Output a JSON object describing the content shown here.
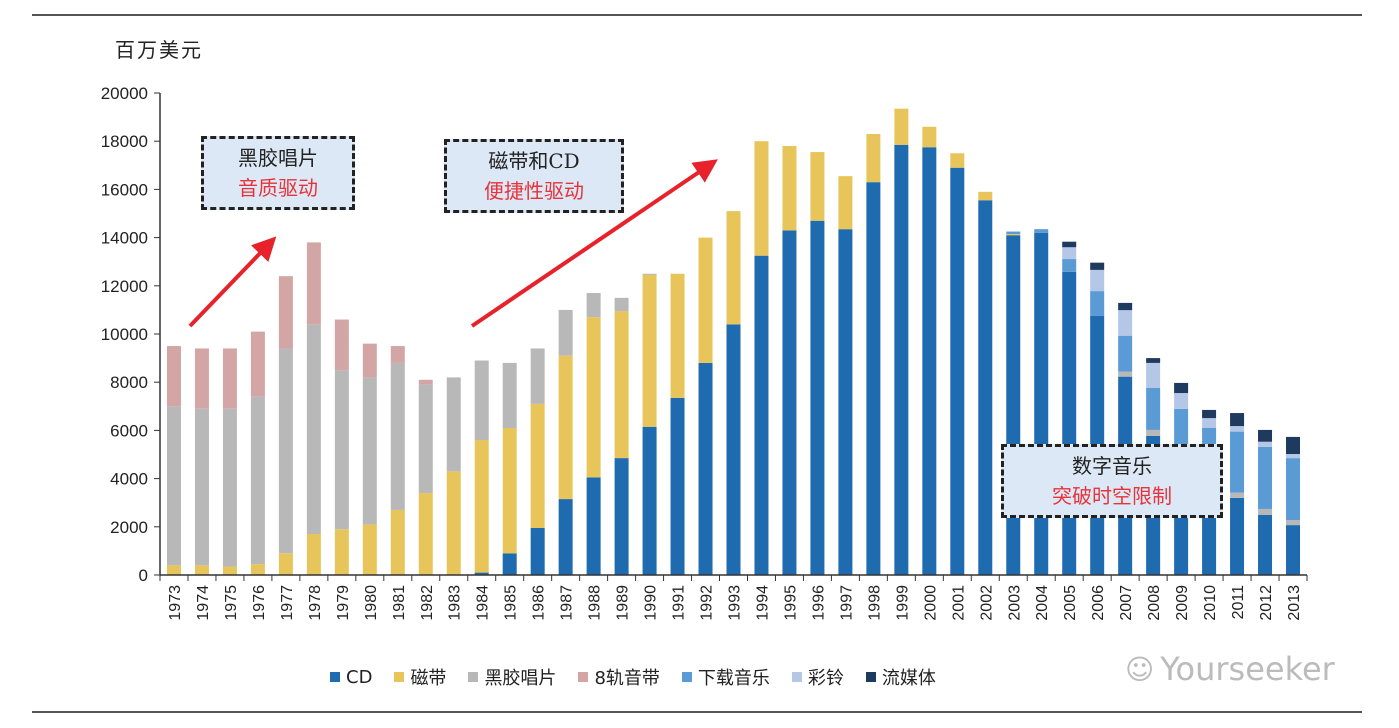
{
  "unit_label": "百万美元",
  "annotations": [
    {
      "line1": "黑胶唱片",
      "line2": "音质驱动"
    },
    {
      "line1": "磁带和CD",
      "line2": "便捷性驱动"
    },
    {
      "line1": "数字音乐",
      "line2": "突破时空限制"
    }
  ],
  "watermark": "Yourseeker",
  "chart_data": {
    "type": "bar",
    "stacked": true,
    "title": "",
    "xlabel": "",
    "ylabel": "百万美元",
    "ylim": [
      0,
      20000
    ],
    "yticks": [
      0,
      2000,
      4000,
      6000,
      8000,
      10000,
      12000,
      14000,
      16000,
      18000,
      20000
    ],
    "grid": false,
    "legend_placement": "bottom",
    "categories": [
      "1973",
      "1974",
      "1975",
      "1976",
      "1977",
      "1978",
      "1979",
      "1980",
      "1981",
      "1982",
      "1983",
      "1984",
      "1985",
      "1986",
      "1987",
      "1988",
      "1989",
      "1990",
      "1991",
      "1992",
      "1993",
      "1994",
      "1995",
      "1996",
      "1997",
      "1998",
      "1999",
      "2000",
      "2001",
      "2002",
      "2003",
      "2004",
      "2005",
      "2006",
      "2007",
      "2008",
      "2009",
      "2010",
      "2011",
      "2012",
      "2013"
    ],
    "series": [
      {
        "name": "CD",
        "color": "#1f6bb0",
        "values": [
          0,
          0,
          0,
          0,
          0,
          0,
          0,
          0,
          0,
          0,
          0,
          100,
          900,
          1950,
          3150,
          4050,
          4850,
          6150,
          7350,
          8800,
          10400,
          13250,
          14300,
          14700,
          14350,
          16300,
          17850,
          17750,
          16900,
          15550,
          14100,
          14200,
          12580,
          10760,
          8230,
          5770,
          4300,
          3400,
          3200,
          2490,
          2070
        ]
      },
      {
        "name": "磁带",
        "color": "#e8c55a",
        "values": [
          400,
          400,
          350,
          450,
          900,
          1700,
          1900,
          2100,
          2700,
          3400,
          4300,
          5500,
          5200,
          5150,
          5950,
          6650,
          6100,
          6300,
          5150,
          5200,
          4700,
          4750,
          3500,
          2850,
          2200,
          2000,
          1500,
          850,
          600,
          350,
          50,
          0,
          0,
          0,
          0,
          0,
          0,
          0,
          0,
          0,
          0
        ]
      },
      {
        "name": "黑胶唱片",
        "color": "#b8b8b8",
        "values": [
          6600,
          6500,
          6550,
          6950,
          8500,
          8700,
          6600,
          6100,
          6100,
          4500,
          3900,
          3300,
          2700,
          2300,
          1900,
          1000,
          550,
          50,
          0,
          0,
          0,
          0,
          0,
          0,
          0,
          0,
          0,
          0,
          0,
          0,
          0,
          0,
          0,
          0,
          210,
          250,
          100,
          100,
          220,
          250,
          210
        ]
      },
      {
        "name": "8轨音带",
        "color": "#d4a5a5",
        "values": [
          2500,
          2500,
          2500,
          2700,
          3000,
          3400,
          2100,
          1400,
          700,
          200,
          0,
          0,
          0,
          0,
          0,
          0,
          0,
          0,
          0,
          0,
          0,
          0,
          0,
          0,
          0,
          0,
          0,
          0,
          0,
          0,
          0,
          0,
          0,
          0,
          0,
          0,
          0,
          0,
          0,
          0,
          0
        ]
      },
      {
        "name": "下载音乐",
        "color": "#5b9bd5",
        "values": [
          0,
          0,
          0,
          0,
          0,
          0,
          0,
          0,
          0,
          0,
          0,
          0,
          0,
          0,
          0,
          0,
          0,
          0,
          0,
          0,
          0,
          0,
          0,
          0,
          0,
          0,
          0,
          0,
          0,
          0,
          100,
          150,
          530,
          1020,
          1490,
          1750,
          2490,
          2600,
          2530,
          2580,
          2570
        ]
      },
      {
        "name": "彩铃",
        "color": "#b4c7e7",
        "values": [
          0,
          0,
          0,
          0,
          0,
          0,
          0,
          0,
          0,
          0,
          0,
          0,
          0,
          0,
          0,
          0,
          0,
          0,
          0,
          0,
          0,
          0,
          0,
          0,
          0,
          0,
          0,
          0,
          0,
          0,
          0,
          0,
          490,
          880,
          1060,
          1030,
          660,
          410,
          230,
          210,
          170
        ]
      },
      {
        "name": "流媒体",
        "color": "#1f3a5f",
        "values": [
          0,
          0,
          0,
          0,
          0,
          0,
          0,
          0,
          0,
          0,
          0,
          0,
          0,
          0,
          0,
          0,
          0,
          0,
          0,
          0,
          0,
          0,
          0,
          0,
          0,
          0,
          0,
          0,
          0,
          0,
          0,
          0,
          230,
          300,
          300,
          200,
          420,
          340,
          540,
          490,
          710
        ]
      }
    ]
  }
}
